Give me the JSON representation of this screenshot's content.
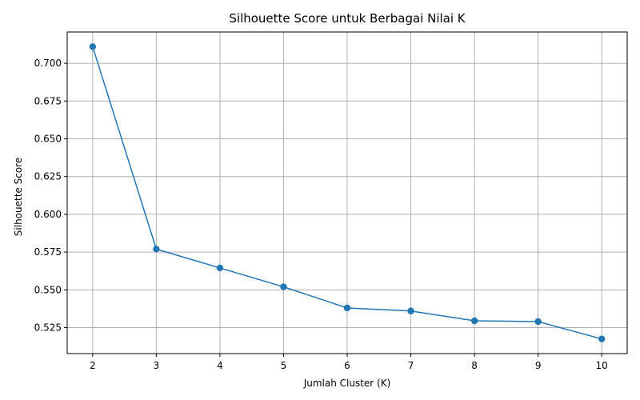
{
  "chart_data": {
    "type": "line",
    "title": "Silhouette Score untuk Berbagai Nilai K",
    "xlabel": "Jumlah Cluster (K)",
    "ylabel": "Silhouette Score",
    "x": [
      2,
      3,
      4,
      5,
      6,
      7,
      8,
      9,
      10
    ],
    "series": [
      {
        "values": [
          0.711,
          0.577,
          0.5645,
          0.552,
          0.538,
          0.536,
          0.5295,
          0.529,
          0.5175
        ]
      }
    ],
    "xlim": [
      1.6,
      10.4
    ],
    "ylim": [
      0.5078,
      0.7207
    ],
    "x_ticks": [
      2,
      3,
      4,
      5,
      6,
      7,
      8,
      9,
      10
    ],
    "x_tick_labels": [
      "2",
      "3",
      "4",
      "5",
      "6",
      "7",
      "8",
      "9",
      "10"
    ],
    "y_ticks": [
      0.525,
      0.55,
      0.575,
      0.6,
      0.625,
      0.65,
      0.675,
      0.7
    ],
    "y_tick_labels": [
      "0.525",
      "0.550",
      "0.575",
      "0.600",
      "0.625",
      "0.650",
      "0.675",
      "0.700"
    ],
    "grid": true,
    "marker": "circle",
    "colors": {
      "line": "#1f77b4",
      "grid": "#b0b0b0",
      "axis": "#000000"
    }
  }
}
